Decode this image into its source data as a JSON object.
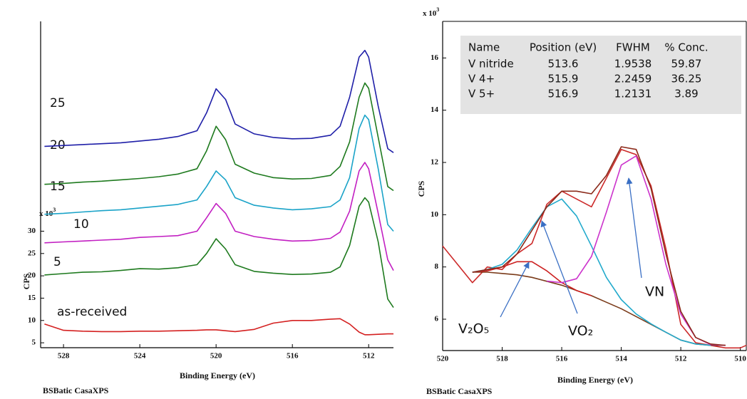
{
  "chart_data": [
    {
      "type": "line",
      "xlabel": "Binding Energy (eV)",
      "ylabel": "CPS",
      "y_multiplier": "x 10",
      "y_multiplier_exp": "3",
      "footer": "BSBatic CasaXPS",
      "xlim": [
        529.2,
        510.7
      ],
      "xticks": [
        528,
        524,
        520,
        516,
        512
      ],
      "ylim": [
        3.9,
        77
      ],
      "yticks": [
        5,
        10,
        15,
        20,
        25,
        30
      ],
      "x": [
        529,
        528,
        527,
        526,
        525,
        524,
        523,
        522,
        521,
        520.5,
        520,
        519.5,
        519,
        518,
        517,
        516,
        515,
        514,
        513.5,
        513,
        512.5,
        512.2,
        512,
        511.5,
        511,
        510.7
      ],
      "series": [
        {
          "name": "as-received",
          "color": "#d42020",
          "values": [
            9.2,
            7.8,
            7.6,
            7.5,
            7.5,
            7.6,
            7.6,
            7.7,
            7.8,
            7.9,
            7.9,
            7.7,
            7.5,
            8,
            9.4,
            10,
            10,
            10.3,
            10.4,
            9.2,
            7.4,
            6.8,
            6.8,
            6.9,
            7,
            7
          ]
        },
        {
          "name": "5",
          "color": "#1e7a1e",
          "values": [
            20.2,
            20.5,
            20.8,
            20.9,
            21.2,
            21.6,
            21.5,
            21.8,
            22.5,
            25,
            28.3,
            26,
            22.5,
            21,
            20.6,
            20.3,
            20.4,
            20.8,
            22,
            26.8,
            35.6,
            37.5,
            36.5,
            27.6,
            14.8,
            12.9
          ]
        },
        {
          "name": "10",
          "color": "#c21fc2",
          "values": [
            27.4,
            27.6,
            27.8,
            28,
            28.2,
            28.6,
            28.8,
            29,
            30,
            33,
            36.2,
            34,
            30,
            28.8,
            28.2,
            27.8,
            27.9,
            28.4,
            29.8,
            34.5,
            43.5,
            45.4,
            44,
            34,
            23.6,
            21.2
          ]
        },
        {
          "name": "15",
          "color": "#1aa3c8",
          "values": [
            33.8,
            34,
            34.3,
            34.6,
            34.8,
            35.2,
            35.6,
            36,
            37,
            40,
            43.5,
            41.5,
            37.5,
            35.8,
            35.2,
            34.8,
            35,
            35.5,
            37,
            42,
            53,
            56,
            55,
            44,
            31.5,
            30
          ]
        },
        {
          "name": "20",
          "color": "#1e7a1e",
          "values": [
            40.5,
            40.7,
            41,
            41.2,
            41.5,
            41.8,
            42.2,
            42.8,
            44,
            48,
            53.5,
            50.5,
            45,
            43,
            42,
            41.7,
            41.8,
            42.5,
            44.5,
            50,
            60,
            63.2,
            62,
            51,
            40,
            39.1
          ]
        },
        {
          "name": "25",
          "color": "#1f1fa8",
          "values": [
            49,
            49.2,
            49.4,
            49.6,
            49.8,
            50.2,
            50.6,
            51.2,
            52.5,
            56.5,
            61.9,
            59.5,
            54,
            51.8,
            51,
            50.7,
            50.8,
            51.5,
            53.5,
            60,
            69,
            70.5,
            69,
            58,
            48.5,
            47.6
          ]
        }
      ]
    },
    {
      "type": "line",
      "xlabel": "Binding Energy (eV)",
      "ylabel": "CPS",
      "y_multiplier": "x 10",
      "y_multiplier_exp": "3",
      "footer": "BSBatic CasaXPS",
      "xlim": [
        520,
        509.8
      ],
      "xticks": [
        520,
        518,
        516,
        514,
        512,
        510
      ],
      "ylim": [
        4.8,
        17.4
      ],
      "yticks": [
        6,
        8,
        10,
        12,
        14,
        16
      ],
      "x": [
        520,
        519.5,
        519,
        518.5,
        518,
        517.5,
        517,
        516.5,
        516,
        515.5,
        515,
        514.5,
        514,
        513.5,
        513,
        512.5,
        512,
        511.5,
        511,
        510.5,
        510,
        509.8
      ],
      "series": [
        {
          "color": "#cc2a2a",
          "values": [
            8.8,
            8.1,
            7.4,
            8,
            7.9,
            8.5,
            8.9,
            10.4,
            10.9,
            10.6,
            10.3,
            11.4,
            12.5,
            12.3,
            11.1,
            8.7,
            5.8,
            5.1,
            5,
            4.9,
            4.9,
            5
          ]
        },
        {
          "color": "#7a3b1a",
          "values": [
            null,
            null,
            7.8,
            7.8,
            7.75,
            7.7,
            7.6,
            7.45,
            7.3,
            7.1,
            6.9,
            6.65,
            6.4,
            6.1,
            5.8,
            5.5,
            5.2,
            5.05,
            5,
            5,
            null,
            null
          ]
        },
        {
          "color": "#cc2020",
          "values": [
            null,
            null,
            7.8,
            7.85,
            8,
            8.2,
            8.2,
            7.85,
            7.4,
            7.1,
            6.9,
            null,
            null,
            null,
            null,
            null,
            null,
            null,
            null,
            null,
            null,
            null
          ]
        },
        {
          "color": "#22aacc",
          "values": [
            null,
            null,
            7.8,
            7.9,
            8.1,
            8.65,
            9.5,
            10.3,
            10.6,
            9.95,
            8.8,
            7.6,
            6.75,
            6.2,
            5.82,
            5.5,
            5.2,
            5.05,
            5,
            null,
            null,
            null
          ]
        },
        {
          "color": "#cc33cc",
          "values": [
            null,
            null,
            null,
            null,
            null,
            null,
            null,
            7.46,
            7.4,
            7.55,
            8.4,
            10.1,
            11.9,
            12.25,
            10.6,
            8.1,
            6.2,
            5.3,
            5.03,
            5,
            null,
            null
          ]
        },
        {
          "color": "#8b2a1a",
          "values": [
            null,
            null,
            7.8,
            7.9,
            8,
            8.5,
            9.4,
            10.3,
            10.9,
            10.9,
            10.8,
            11.5,
            12.6,
            12.5,
            11,
            8.5,
            6.3,
            5.3,
            5.05,
            5,
            null,
            null
          ]
        }
      ],
      "annotations": [
        "V₂O₅",
        "VO₂",
        "VN"
      ],
      "table": {
        "columns": [
          "Name",
          "Position (eV)",
          "FWHM",
          "% Conc."
        ],
        "rows": [
          [
            "V nitride",
            513.6,
            1.9538,
            59.87
          ],
          [
            "V 4+",
            515.9,
            2.2459,
            36.25
          ],
          [
            "V 5+",
            516.9,
            1.2131,
            3.89
          ]
        ]
      }
    }
  ]
}
